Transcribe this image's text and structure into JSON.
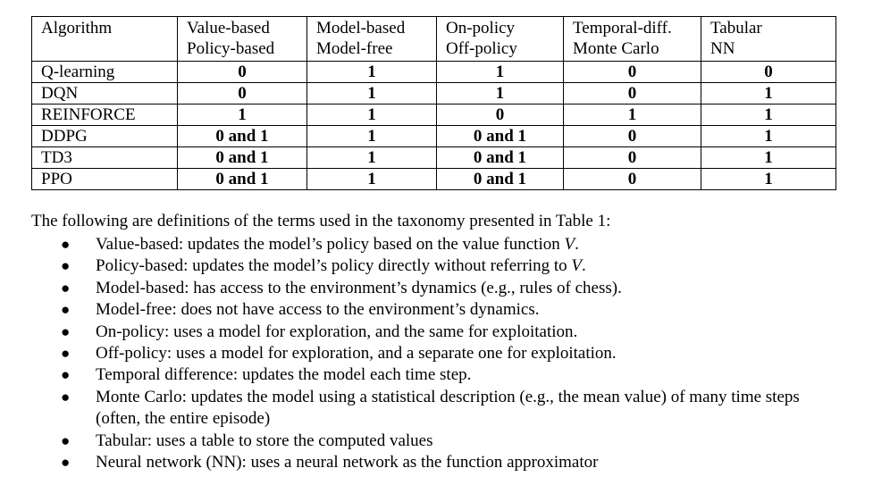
{
  "table": {
    "headers": [
      [
        "Algorithm"
      ],
      [
        "Value-based",
        "Policy-based"
      ],
      [
        "Model-based",
        "Model-free"
      ],
      [
        "On-policy",
        "Off-policy"
      ],
      [
        "Temporal-diff.",
        "Monte Carlo"
      ],
      [
        "Tabular",
        "NN"
      ]
    ],
    "rows": [
      {
        "name": "Q-learning",
        "values": [
          "0",
          "1",
          "1",
          "0",
          "0"
        ]
      },
      {
        "name": "DQN",
        "values": [
          "0",
          "1",
          "1",
          "0",
          "1"
        ]
      },
      {
        "name": "REINFORCE",
        "values": [
          "1",
          "1",
          "0",
          "1",
          "1"
        ]
      },
      {
        "name": "DDPG",
        "values": [
          "0 and 1",
          "1",
          "0 and 1",
          "0",
          "1"
        ]
      },
      {
        "name": "TD3",
        "values": [
          "0 and 1",
          "1",
          "0 and 1",
          "0",
          "1"
        ]
      },
      {
        "name": "PPO",
        "values": [
          "0 and 1",
          "1",
          "0 and 1",
          "0",
          "1"
        ]
      }
    ]
  },
  "intro": "The following are definitions of the terms used in the taxonomy presented in Table 1:",
  "definitions": [
    {
      "pre": "Value-based: updates the model’s policy based on the value function ",
      "em": "V",
      "post": "."
    },
    {
      "pre": "Policy-based: updates the model’s policy directly without referring to ",
      "em": "V",
      "post": "."
    },
    {
      "pre": "Model-based: has access to the environment’s dynamics (e.g., rules of chess).",
      "em": "",
      "post": ""
    },
    {
      "pre": "Model-free: does not have access to the environment’s dynamics.",
      "em": "",
      "post": ""
    },
    {
      "pre": "On-policy: uses a model for exploration, and the same for exploitation.",
      "em": "",
      "post": ""
    },
    {
      "pre": "Off-policy: uses a model for exploration, and a separate one for exploitation.",
      "em": "",
      "post": ""
    },
    {
      "pre": "Temporal difference: updates the model each time step.",
      "em": "",
      "post": ""
    },
    {
      "pre": "Monte Carlo: updates the model using a statistical description (e.g., the mean value) of many time steps (often, the entire episode)",
      "em": "",
      "post": ""
    },
    {
      "pre": "Tabular: uses a table to store the computed values",
      "em": "",
      "post": ""
    },
    {
      "pre": "Neural network (NN): uses a neural network as the function approximator",
      "em": "",
      "post": ""
    }
  ],
  "bullet_glyph": "●"
}
